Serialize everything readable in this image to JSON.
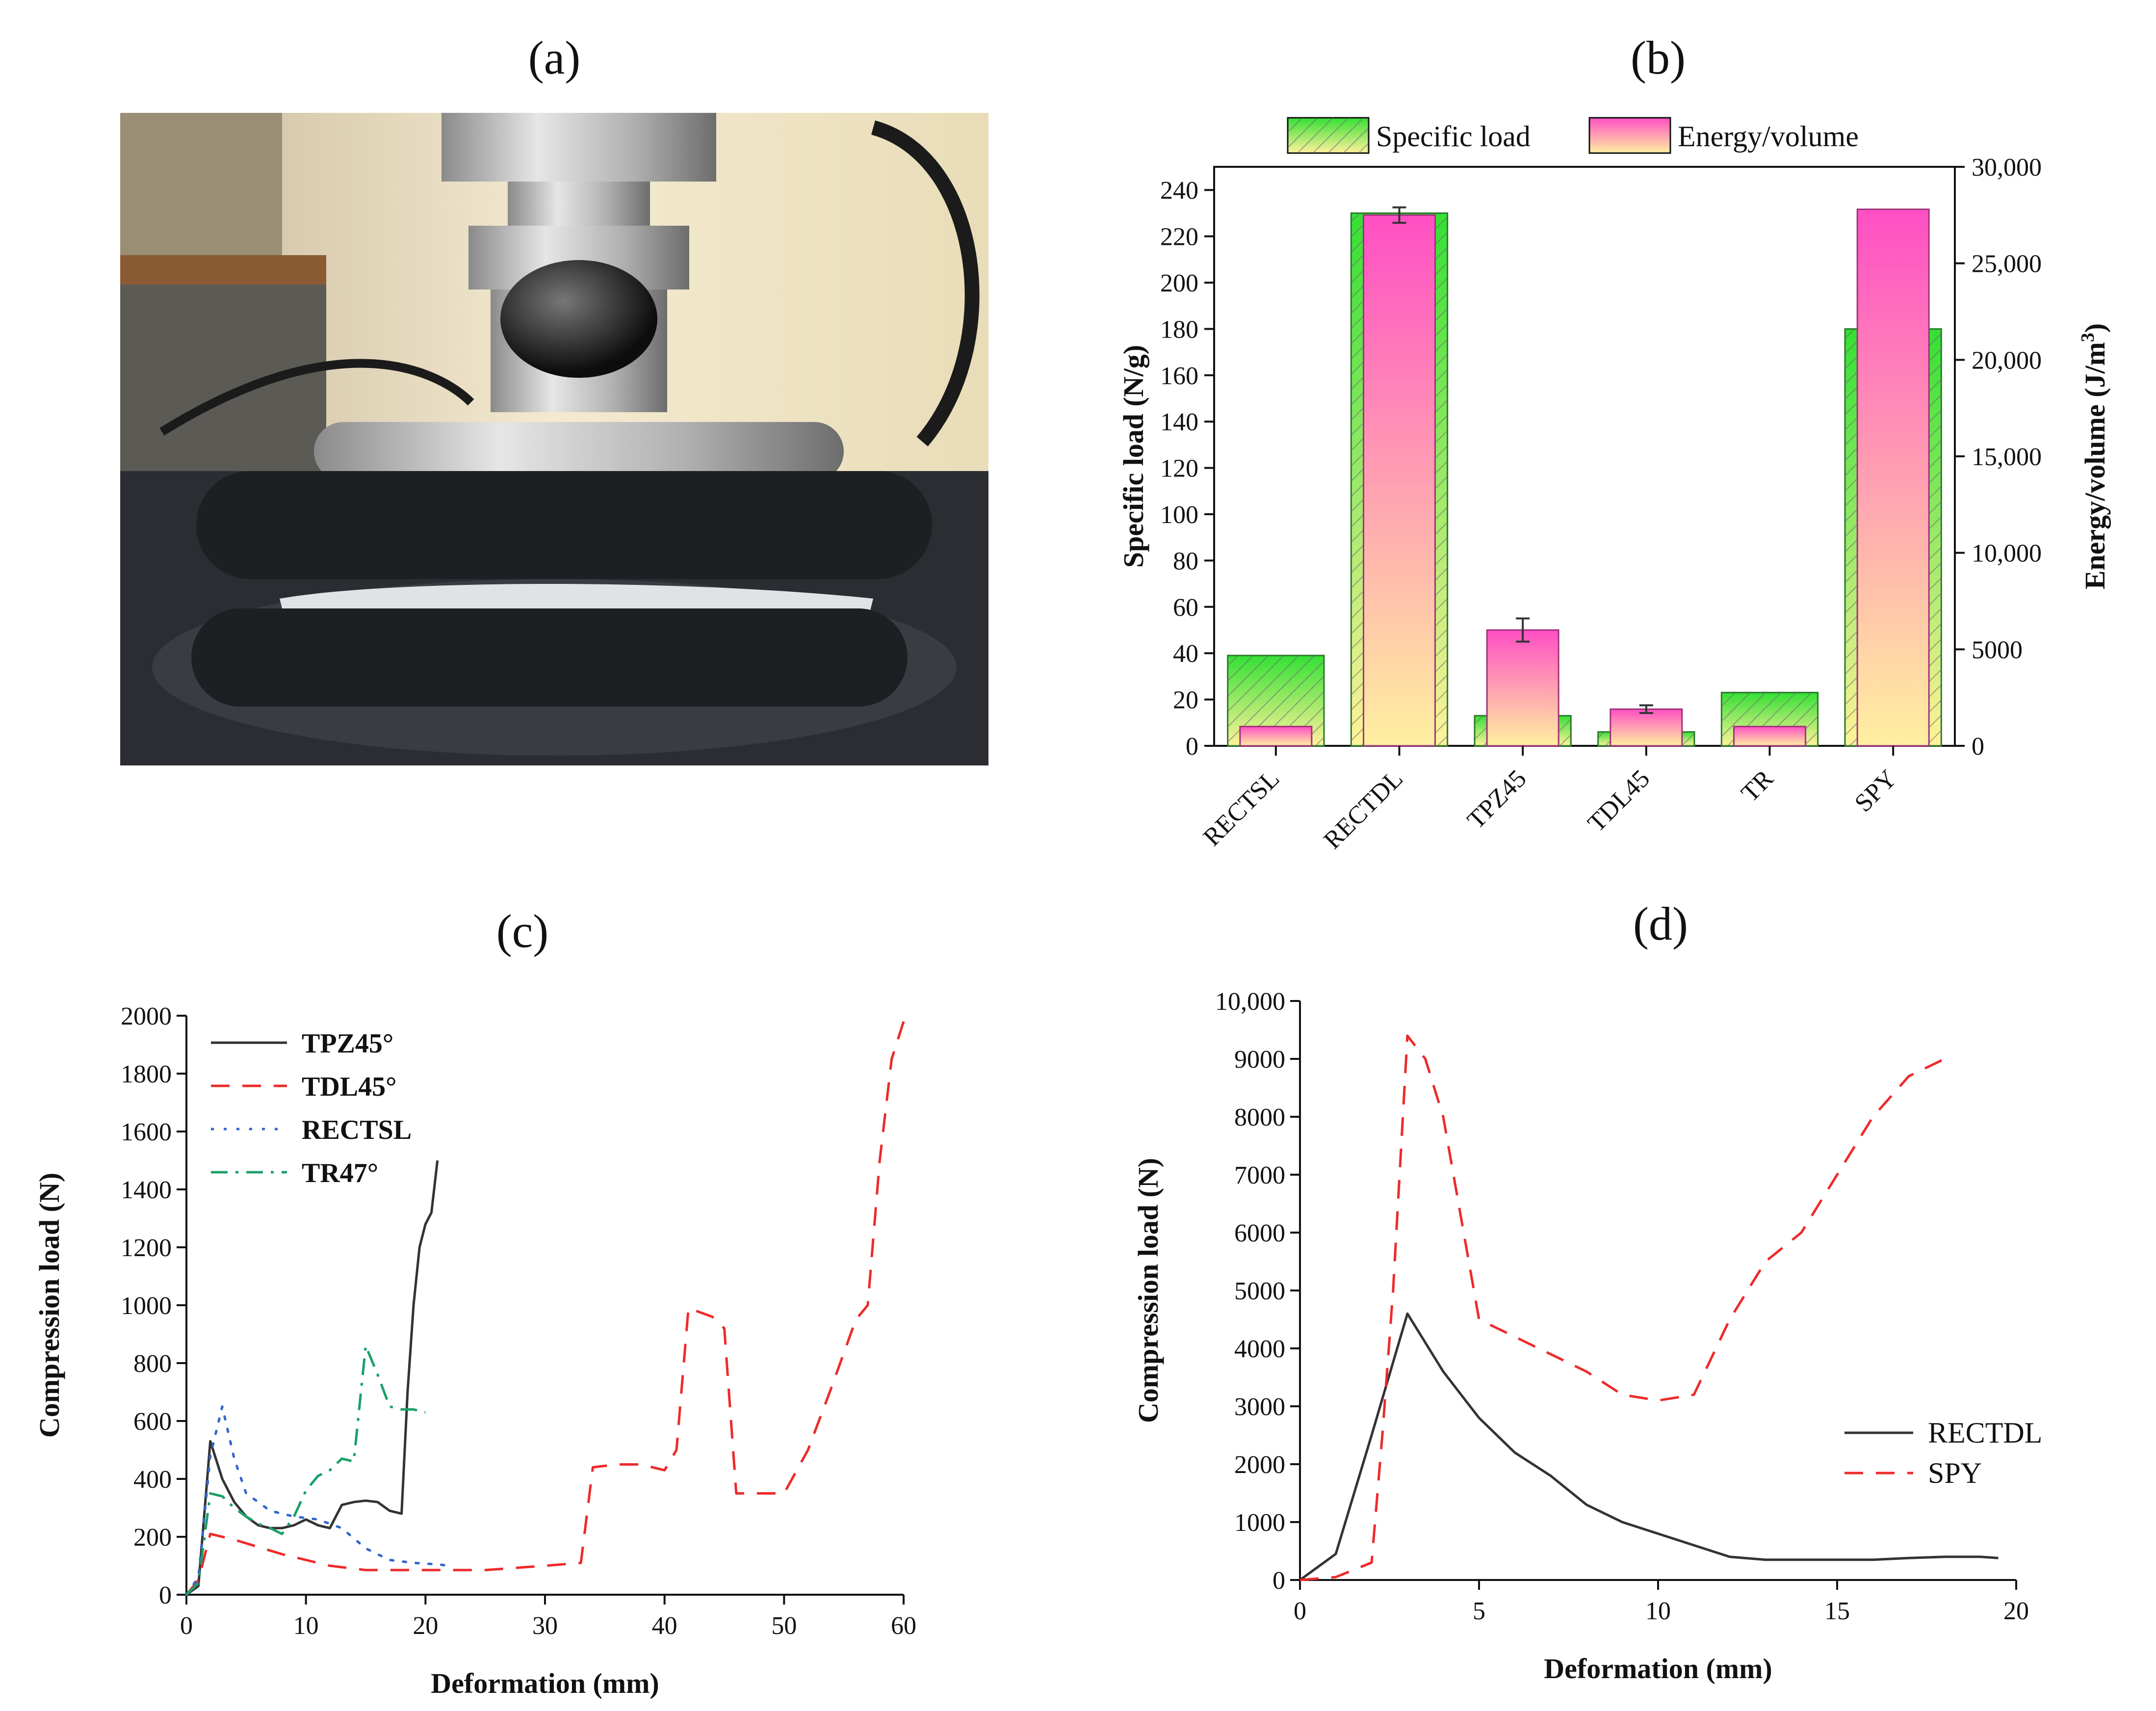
{
  "panels": {
    "a": "(a)",
    "b": "(b)",
    "c": "(c)",
    "d": "(d)"
  },
  "colors": {
    "green_top": "#34e034",
    "green_bottom": "#fff29a",
    "pink_top": "#ff4fc4",
    "pink_bottom": "#fff0a0",
    "black": "#333333",
    "red": "#ee2a2a",
    "blue": "#3366cc",
    "teal": "#1aa068"
  },
  "chart_data": [
    {
      "id": "b",
      "type": "bar",
      "categories": [
        "RECTSL",
        "RECTDL",
        "TPZ45",
        "TDL45",
        "TR",
        "SPY"
      ],
      "series": [
        {
          "name": "Specific load",
          "axis": "left",
          "values": [
            39,
            230,
            13,
            6,
            23,
            180
          ]
        },
        {
          "name": "Energy/volume",
          "axis": "right",
          "values": [
            1000,
            27500,
            6000,
            1900,
            1000,
            27800
          ],
          "error": [
            0,
            400,
            600,
            200,
            0,
            0
          ]
        }
      ],
      "ylabel": "Specific load (N/g)",
      "y2label": "Energy/volume (J/m",
      "y2label_sup": "3",
      "y2label_end": ")",
      "ylim": [
        0,
        250
      ],
      "y2lim": [
        0,
        30000
      ],
      "yticks": [
        "0",
        "20",
        "40",
        "60",
        "80",
        "100",
        "120",
        "140",
        "160",
        "180",
        "200",
        "220",
        "240"
      ],
      "y2ticks": [
        "0",
        "5000",
        "10,000",
        "15,000",
        "20,000",
        "25,000",
        "30,000"
      ]
    },
    {
      "id": "c",
      "type": "line",
      "xlabel": "Deformation (mm)",
      "ylabel": "Compression load (N)",
      "xlim": [
        0,
        60
      ],
      "ylim": [
        0,
        2000
      ],
      "xticks": [
        "0",
        "10",
        "20",
        "30",
        "40",
        "50",
        "60"
      ],
      "yticks": [
        "0",
        "200",
        "400",
        "600",
        "800",
        "1000",
        "1200",
        "1400",
        "1600",
        "1800",
        "2000"
      ],
      "series": [
        {
          "name": "TPZ45°",
          "style": "solid",
          "color": "#333333",
          "x": [
            0,
            1,
            2,
            3,
            4,
            5,
            6,
            7,
            8,
            9,
            10,
            11,
            12,
            13,
            14,
            15,
            16,
            17,
            18,
            18.5,
            19,
            19.5,
            20,
            20.5,
            21
          ],
          "y": [
            0,
            30,
            530,
            400,
            320,
            270,
            240,
            230,
            230,
            240,
            260,
            240,
            230,
            310,
            320,
            325,
            320,
            290,
            280,
            700,
            1000,
            1200,
            1280,
            1320,
            1500
          ]
        },
        {
          "name": "TDL45°",
          "style": "dashed",
          "color": "#ee2a2a",
          "x": [
            0,
            1,
            2,
            4,
            8,
            12,
            15,
            20,
            25,
            30,
            33,
            34,
            36,
            38,
            40,
            41,
            42,
            44,
            45,
            46,
            48,
            50,
            52,
            54,
            56,
            57,
            58,
            59,
            60
          ],
          "y": [
            0,
            50,
            210,
            190,
            140,
            100,
            85,
            85,
            85,
            100,
            110,
            440,
            450,
            450,
            430,
            500,
            990,
            960,
            920,
            350,
            350,
            350,
            500,
            720,
            950,
            1000,
            1500,
            1850,
            1980
          ]
        },
        {
          "name": "RECTSL",
          "style": "dotted",
          "color": "#3366cc",
          "x": [
            0,
            1,
            2,
            3,
            4,
            5,
            7,
            9,
            11,
            13,
            15,
            17,
            19,
            21,
            22
          ],
          "y": [
            0,
            60,
            480,
            650,
            470,
            350,
            290,
            270,
            260,
            230,
            160,
            120,
            110,
            105,
            100
          ]
        },
        {
          "name": "TR47°",
          "style": "dashdot",
          "color": "#1aa068",
          "x": [
            0,
            1,
            2,
            3,
            4,
            5,
            6,
            7,
            8,
            9,
            10,
            11,
            12,
            13,
            14,
            15,
            16,
            17,
            18,
            19,
            20
          ],
          "y": [
            0,
            40,
            350,
            340,
            300,
            270,
            245,
            230,
            210,
            270,
            360,
            410,
            430,
            470,
            460,
            860,
            760,
            650,
            640,
            640,
            630
          ]
        }
      ]
    },
    {
      "id": "d",
      "type": "line",
      "xlabel": "Deformation (mm)",
      "ylabel": "Compression load (N)",
      "xlim": [
        0,
        20
      ],
      "ylim": [
        0,
        10000
      ],
      "xticks": [
        "0",
        "5",
        "10",
        "15",
        "20"
      ],
      "yticks": [
        "0",
        "1000",
        "2000",
        "3000",
        "4000",
        "5000",
        "6000",
        "7000",
        "8000",
        "9000",
        "10,000"
      ],
      "series": [
        {
          "name": "RECTDL",
          "style": "solid",
          "color": "#333333",
          "x": [
            0,
            1,
            2,
            3,
            4,
            5,
            6,
            7,
            8,
            9,
            10,
            11,
            12,
            13,
            14,
            15,
            16,
            17,
            18,
            19,
            19.5
          ],
          "y": [
            0,
            450,
            2500,
            4600,
            3600,
            2800,
            2200,
            1800,
            1300,
            1000,
            800,
            600,
            400,
            350,
            350,
            350,
            350,
            380,
            400,
            400,
            380
          ]
        },
        {
          "name": "SPY",
          "style": "dashed",
          "color": "#ee2a2a",
          "x": [
            0,
            1,
            2,
            2.3,
            2.6,
            3,
            3.5,
            4,
            5,
            6,
            7,
            8,
            9,
            10,
            11,
            12,
            13,
            14,
            15,
            16,
            17,
            18
          ],
          "y": [
            0,
            50,
            300,
            2500,
            5000,
            9400,
            9000,
            8000,
            4500,
            4200,
            3900,
            3600,
            3200,
            3100,
            3200,
            4500,
            5500,
            6000,
            7000,
            8000,
            8700,
            9000
          ]
        }
      ]
    }
  ]
}
